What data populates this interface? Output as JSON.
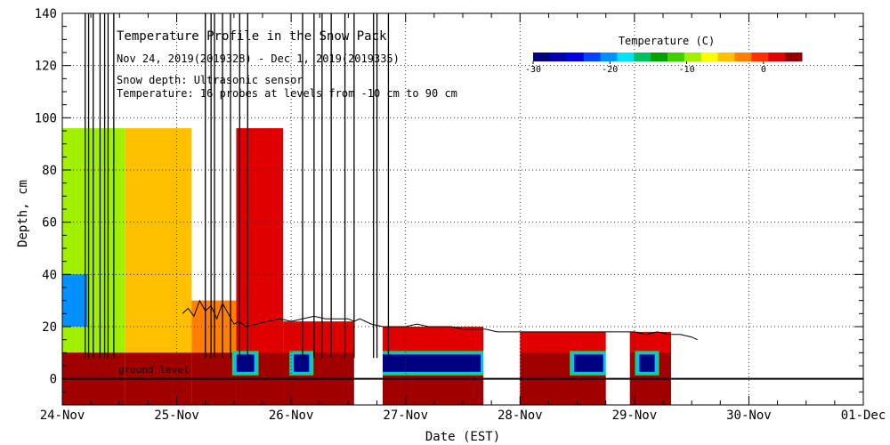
{
  "chart_data": {
    "type": "heatmap",
    "title": "Temperature Profile in the Snow Pack",
    "subtitle": "Nov 24, 2019(2019328) - Dec  1, 2019(2019335)",
    "note_depth": "Snow depth: Ultrasonic sensor",
    "note_temp": "Temperature: 16 probes at levels from -10 cm to 90 cm",
    "xlabel": "Date (EST)",
    "ylabel": "Depth, cm",
    "x_ticks": [
      "24-Nov",
      "25-Nov",
      "26-Nov",
      "27-Nov",
      "28-Nov",
      "29-Nov",
      "30-Nov",
      "01-Dec"
    ],
    "y_ticks": [
      0,
      20,
      40,
      60,
      80,
      100,
      120,
      140
    ],
    "ylim": [
      -10,
      140
    ],
    "xlim_days": [
      0,
      7
    ],
    "ground_label": "ground level",
    "grid": true,
    "colorbar": {
      "title": "Temperature (C)",
      "ticks": [
        -30,
        -20,
        -10,
        0
      ],
      "range": [
        -30,
        5
      ],
      "colors": [
        "#000080",
        "#0000b0",
        "#0000e0",
        "#0040ff",
        "#0090ff",
        "#00e0ff",
        "#00c060",
        "#00a000",
        "#40d000",
        "#a0f000",
        "#ffff00",
        "#ffc000",
        "#ff8000",
        "#ff3000",
        "#e00000",
        "#900000"
      ]
    },
    "heatmap_blocks": [
      {
        "x0": 0.0,
        "x1": 0.55,
        "y0": -10,
        "y1": 96,
        "value": -9
      },
      {
        "x0": 0.0,
        "x1": 0.22,
        "y0": 20,
        "y1": 40,
        "value": -20
      },
      {
        "x0": 0.55,
        "x1": 1.13,
        "y0": -10,
        "y1": 96,
        "value": -4
      },
      {
        "x0": 1.13,
        "x1": 1.52,
        "y0": -10,
        "y1": 30,
        "value": -3
      },
      {
        "x0": 1.52,
        "x1": 1.93,
        "y0": -10,
        "y1": 96,
        "value": 1
      },
      {
        "x0": 1.93,
        "x1": 2.55,
        "y0": -10,
        "y1": 22,
        "value": 1
      },
      {
        "x0": 2.8,
        "x1": 3.68,
        "y0": -10,
        "y1": 20,
        "value": 1
      },
      {
        "x0": 3.68,
        "x1": 4.75,
        "y0": -10,
        "y1": 18,
        "value": 1
      },
      {
        "x0": 4.75,
        "x1": 5.32,
        "y0": -10,
        "y1": 18,
        "value": 1
      }
    ],
    "gaps_days": [
      [
        2.55,
        2.8
      ],
      [
        3.68,
        4.0
      ],
      [
        4.75,
        4.96
      ],
      [
        5.32,
        6.0
      ]
    ],
    "cold_spots": [
      {
        "x0": 1.5,
        "x1": 1.7,
        "y0": 2,
        "y1": 10
      },
      {
        "x0": 2.0,
        "x1": 2.18,
        "y0": 2,
        "y1": 10
      },
      {
        "x0": 2.62,
        "x1": 3.68,
        "y0": 2,
        "y1": 10
      },
      {
        "x0": 4.45,
        "x1": 4.75,
        "y0": 2,
        "y1": 10
      },
      {
        "x0": 5.02,
        "x1": 5.2,
        "y0": 2,
        "y1": 10
      }
    ],
    "snow_depth": {
      "x": [
        1.05,
        1.1,
        1.15,
        1.2,
        1.25,
        1.3,
        1.35,
        1.4,
        1.45,
        1.5,
        1.55,
        1.6,
        1.7,
        1.8,
        1.9,
        2.0,
        2.1,
        2.2,
        2.3,
        2.4,
        2.5,
        2.55,
        2.6,
        2.7,
        2.8,
        2.9,
        3.0,
        3.1,
        3.2,
        3.3,
        3.4,
        3.5,
        3.6,
        3.7,
        3.8,
        3.9,
        4.0,
        4.1,
        4.2,
        4.3,
        4.4,
        4.5,
        4.6,
        4.7,
        4.8,
        4.9,
        5.0,
        5.1,
        5.2,
        5.3,
        5.4,
        5.5,
        5.55
      ],
      "y": [
        25,
        27,
        24,
        30,
        26,
        28,
        23,
        29,
        25,
        21,
        22,
        20,
        21,
        22,
        23,
        22,
        23,
        24,
        23,
        23,
        23,
        22,
        23,
        21,
        20,
        20,
        20,
        21,
        20,
        20,
        20,
        19,
        19,
        19,
        18,
        18,
        18,
        18,
        18,
        18,
        18,
        18,
        18,
        18,
        18,
        18,
        18,
        17,
        18,
        17,
        17,
        16,
        15
      ]
    },
    "spikes_days": [
      0.2,
      0.23,
      0.27,
      0.33,
      0.37,
      0.4,
      0.45,
      1.25,
      1.3,
      1.33,
      1.4,
      1.47,
      1.55,
      1.62,
      2.1,
      2.2,
      2.27,
      2.35,
      2.47,
      2.55,
      2.72,
      2.75,
      2.85
    ]
  }
}
